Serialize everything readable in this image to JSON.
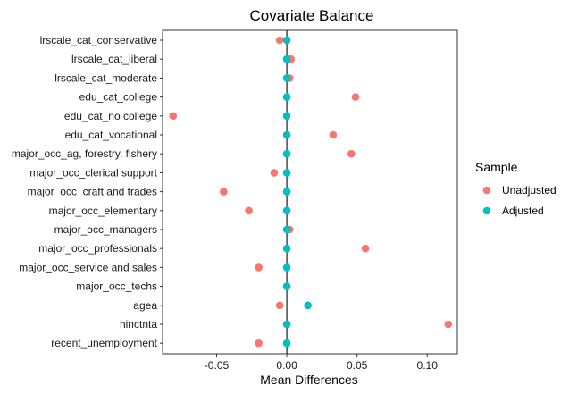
{
  "chart_data": {
    "type": "scatter",
    "title": "Covariate Balance",
    "xlabel": "Mean Differences",
    "ylabel": "",
    "xlim": [
      -0.0885,
      0.1215
    ],
    "x_ticks": [
      -0.05,
      0.0,
      0.05,
      0.1
    ],
    "x_tick_labels": [
      "-0.05",
      "0.00",
      "0.05",
      "0.10"
    ],
    "reference_line_x": 0,
    "grid": false,
    "legend_position": "right",
    "legend_title": "Sample",
    "categories": [
      "lrscale_cat_conservative",
      "lrscale_cat_liberal",
      "lrscale_cat_moderate",
      "edu_cat_college",
      "edu_cat_no college",
      "edu_cat_vocational",
      "major_occ_ag, forestry, fishery",
      "major_occ_clerical support",
      "major_occ_craft and trades",
      "major_occ_elementary",
      "major_occ_managers",
      "major_occ_professionals",
      "major_occ_service and sales",
      "major_occ_techs",
      "agea",
      "hinctnta",
      "recent_unemployment"
    ],
    "series": [
      {
        "name": "Unadjusted",
        "color": "#F8766D",
        "values": [
          -0.005,
          0.003,
          0.002,
          0.049,
          -0.081,
          0.033,
          0.046,
          -0.009,
          -0.045,
          -0.027,
          0.002,
          0.056,
          -0.02,
          0.0,
          -0.005,
          0.115,
          -0.02
        ]
      },
      {
        "name": "Adjusted",
        "color": "#00BFC4",
        "values": [
          0.0,
          0.0,
          0.0,
          0.0,
          0.0,
          0.0,
          0.0,
          0.0,
          0.0,
          0.0,
          0.0,
          0.0,
          0.0,
          0.0,
          0.015,
          0.0,
          0.0
        ]
      }
    ]
  }
}
